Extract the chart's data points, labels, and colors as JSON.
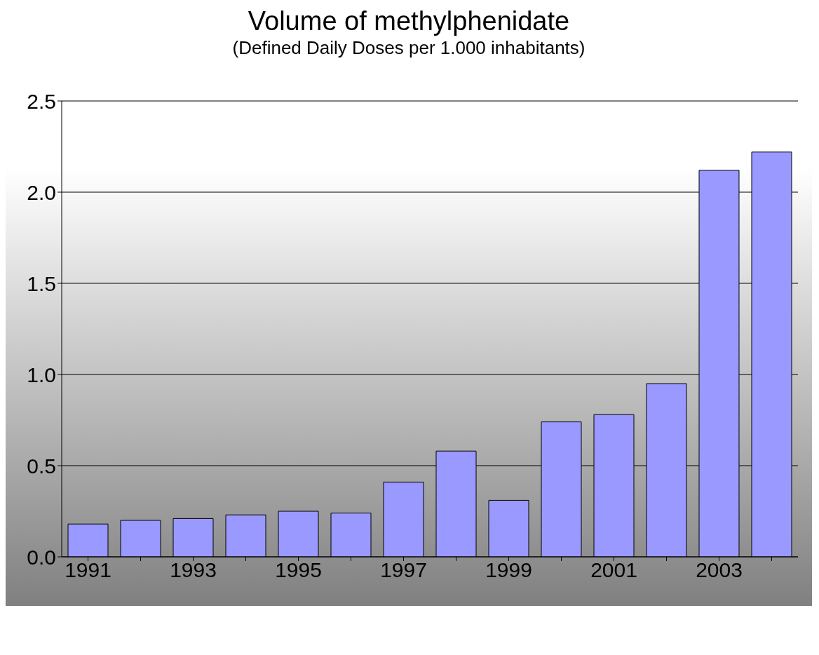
{
  "chart_data": {
    "type": "bar",
    "title": "Volume of methylphenidate",
    "subtitle": "(Defined Daily Doses per 1.000 inhabitants)",
    "categories": [
      "1991",
      null,
      "1993",
      null,
      "1995",
      null,
      "1997",
      null,
      "1999",
      null,
      "2001",
      null,
      "2003",
      null
    ],
    "values": [
      0.18,
      0.2,
      0.21,
      0.23,
      0.25,
      0.24,
      0.41,
      0.58,
      0.31,
      0.74,
      0.78,
      0.95,
      2.12,
      2.22
    ],
    "color": "#9999ff",
    "ylim": [
      0,
      2.5
    ],
    "yticks": [
      {
        "value": 0,
        "label": "0.0"
      },
      {
        "value": 0.5,
        "label": "0.5"
      },
      {
        "value": 1,
        "label": "1.0"
      },
      {
        "value": 1.5,
        "label": "1.5"
      },
      {
        "value": 2,
        "label": "2.0"
      },
      {
        "value": 2.5,
        "label": "2.5"
      }
    ],
    "grid": "y"
  }
}
